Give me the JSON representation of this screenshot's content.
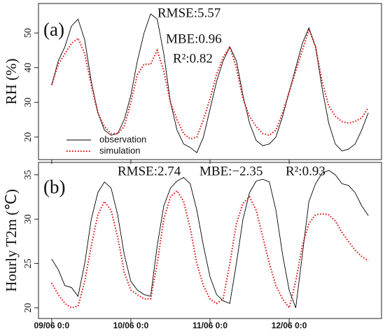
{
  "chart_data": [
    {
      "type": "line",
      "panel_label": "(a)",
      "y_label": "RH (%)",
      "annotations": [
        "RMSE:5.57",
        "MBE:0.96",
        "R²:0.82"
      ],
      "x": [
        0,
        2,
        4,
        6,
        8,
        10,
        12,
        14,
        16,
        18,
        20,
        22,
        24,
        26,
        28,
        30,
        32,
        34,
        36,
        38,
        40,
        42,
        44,
        46,
        48,
        50,
        52,
        54,
        56,
        58,
        60,
        62,
        64,
        66,
        68,
        70,
        72,
        74,
        76,
        78,
        80,
        82,
        84,
        86,
        88,
        90,
        92,
        94,
        96
      ],
      "xlim": [
        -4,
        100
      ],
      "xticks": [
        0,
        24,
        48,
        72
      ],
      "ylim": [
        13.5,
        58.5
      ],
      "yticks": [
        20,
        30,
        40,
        50
      ],
      "legend": "bottom-left",
      "series": [
        {
          "name": "observation",
          "color": "#000000",
          "style": "solid",
          "values": [
            35,
            42,
            46,
            52,
            54,
            48,
            36,
            27,
            22,
            20.5,
            21,
            25,
            32,
            42,
            50,
            55.5,
            54,
            44,
            30,
            22,
            18,
            17,
            15.5,
            20,
            28,
            36,
            42,
            46,
            42,
            32,
            24,
            19,
            17.5,
            18,
            20,
            26,
            33,
            40,
            47,
            51.5,
            46,
            34,
            24,
            18,
            16,
            16.5,
            18,
            22,
            27
          ]
        },
        {
          "name": "simulation",
          "color": "#e00000",
          "style": "dotted",
          "values": [
            35,
            41,
            44,
            47,
            48.5,
            44,
            35,
            27,
            23,
            21,
            21,
            23,
            30,
            38,
            41,
            41,
            45,
            39,
            30,
            25,
            21,
            19.5,
            20,
            25,
            31,
            38,
            43,
            46,
            40,
            31,
            26,
            23,
            21,
            20.5,
            22,
            27,
            33,
            39,
            45,
            51,
            46,
            36,
            29,
            26,
            24.5,
            24,
            24.5,
            25.5,
            28.5
          ]
        }
      ]
    },
    {
      "type": "line",
      "panel_label": "(b)",
      "y_label": "Hourly T2m (℃)",
      "annotations": [
        "RMSE:2.74",
        "MBE:−2.35",
        "R²:0.93"
      ],
      "x": [
        0,
        2,
        4,
        6,
        8,
        10,
        12,
        14,
        16,
        18,
        20,
        22,
        24,
        26,
        28,
        30,
        32,
        34,
        36,
        38,
        40,
        42,
        44,
        46,
        48,
        50,
        52,
        54,
        56,
        58,
        60,
        62,
        64,
        66,
        68,
        70,
        72,
        74,
        76,
        78,
        80,
        82,
        84,
        86,
        88,
        90,
        92,
        94,
        96
      ],
      "xlim": [
        -4,
        100
      ],
      "xticks": [
        {
          "value": 0,
          "label": "09/06 0:0"
        },
        {
          "value": 24,
          "label": "10/06 0:0"
        },
        {
          "value": 48,
          "label": "11/06 0:0"
        },
        {
          "value": 72,
          "label": "12/06 0:0"
        }
      ],
      "ylim": [
        18.8,
        36.4
      ],
      "yticks": [
        20,
        25,
        30,
        35
      ],
      "series": [
        {
          "color": "#000000",
          "style": "solid",
          "values": [
            25.5,
            24.3,
            22.5,
            22.3,
            21.3,
            25,
            30,
            33,
            34.2,
            33.5,
            30.5,
            26,
            23,
            22,
            21.5,
            21.3,
            27,
            31.5,
            33.5,
            34.3,
            34.7,
            34,
            31,
            27,
            23.5,
            21.5,
            20.8,
            20.5,
            25,
            30,
            33,
            34.3,
            34.5,
            34.2,
            31,
            26,
            22,
            20,
            26,
            32,
            34,
            35.2,
            35.5,
            35,
            34,
            33.8,
            33,
            31.5,
            30.4
          ]
        },
        {
          "color": "#e00000",
          "style": "dotted",
          "values": [
            22.8,
            21.5,
            20.5,
            20,
            20.2,
            23,
            27,
            30.5,
            32,
            31,
            28,
            24,
            22,
            21.5,
            21,
            21,
            25,
            30,
            32.5,
            33.2,
            32,
            29,
            25,
            22.5,
            21,
            20.5,
            21,
            25,
            29.5,
            31.8,
            32.5,
            31,
            28,
            25,
            22.5,
            21,
            20,
            23,
            27,
            29.5,
            30.5,
            30.6,
            30.5,
            29.8,
            28.5,
            27.5,
            26.5,
            25.8,
            25.3
          ]
        }
      ]
    }
  ]
}
